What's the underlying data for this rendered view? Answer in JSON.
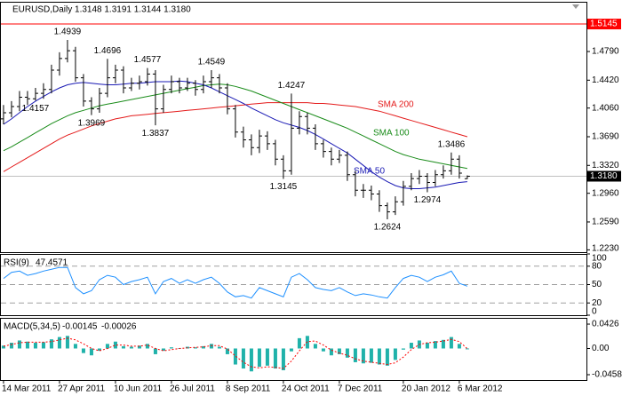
{
  "chart_data": [
    {
      "type": "ohlc",
      "title": "EURUSD,Daily  1.3148 1.3191 1.3144 1.3180",
      "color": "#000000",
      "open": [
        1.392,
        1.4,
        1.408,
        1.42,
        1.418,
        1.425,
        1.43,
        1.455,
        1.47,
        1.48,
        1.445,
        1.415,
        1.405,
        1.425,
        1.445,
        1.455,
        1.432,
        1.438,
        1.44,
        1.45,
        1.405,
        1.43,
        1.44,
        1.432,
        1.438,
        1.43,
        1.44,
        1.445,
        1.432,
        1.405,
        1.375,
        1.365,
        1.355,
        1.37,
        1.36,
        1.34,
        1.325,
        1.38,
        1.395,
        1.38,
        1.36,
        1.35,
        1.34,
        1.345,
        1.32,
        1.3,
        1.3,
        1.295,
        1.28,
        1.272,
        1.285,
        1.305,
        1.315,
        1.318,
        1.31,
        1.32,
        1.325,
        1.34,
        1.3148
      ],
      "high": [
        1.41,
        1.415,
        1.428,
        1.428,
        1.432,
        1.438,
        1.462,
        1.478,
        1.4939,
        1.485,
        1.45,
        1.42,
        1.432,
        1.4696,
        1.462,
        1.46,
        1.445,
        1.448,
        1.4577,
        1.455,
        1.436,
        1.448,
        1.445,
        1.445,
        1.442,
        1.448,
        1.4549,
        1.45,
        1.438,
        1.41,
        1.382,
        1.372,
        1.378,
        1.376,
        1.365,
        1.345,
        1.4247,
        1.402,
        1.4,
        1.385,
        1.365,
        1.355,
        1.352,
        1.35,
        1.325,
        1.308,
        1.306,
        1.3,
        1.284,
        1.292,
        1.312,
        1.322,
        1.326,
        1.322,
        1.326,
        1.332,
        1.3486,
        1.345,
        1.3191
      ],
      "low": [
        1.385,
        1.394,
        1.402,
        1.41,
        1.4157,
        1.418,
        1.425,
        1.448,
        1.465,
        1.44,
        1.408,
        1.3969,
        1.4,
        1.42,
        1.438,
        1.425,
        1.428,
        1.43,
        1.435,
        1.3837,
        1.4,
        1.425,
        1.425,
        1.428,
        1.422,
        1.425,
        1.432,
        1.425,
        1.398,
        1.368,
        1.355,
        1.345,
        1.348,
        1.352,
        1.332,
        1.3145,
        1.32,
        1.372,
        1.372,
        1.352,
        1.342,
        1.332,
        1.335,
        1.312,
        1.292,
        1.29,
        1.287,
        1.272,
        1.2624,
        1.268,
        1.28,
        1.3,
        1.308,
        1.2974,
        1.305,
        1.315,
        1.32,
        1.315,
        1.3144
      ],
      "close": [
        1.4,
        1.408,
        1.42,
        1.418,
        1.425,
        1.43,
        1.455,
        1.47,
        1.48,
        1.445,
        1.415,
        1.405,
        1.425,
        1.445,
        1.455,
        1.432,
        1.438,
        1.44,
        1.45,
        1.405,
        1.43,
        1.44,
        1.432,
        1.438,
        1.43,
        1.44,
        1.445,
        1.432,
        1.405,
        1.375,
        1.365,
        1.355,
        1.37,
        1.36,
        1.34,
        1.325,
        1.38,
        1.395,
        1.38,
        1.36,
        1.35,
        1.34,
        1.345,
        1.32,
        1.3,
        1.3,
        1.295,
        1.28,
        1.272,
        1.285,
        1.305,
        1.315,
        1.318,
        1.31,
        1.32,
        1.325,
        1.34,
        1.322,
        1.318
      ],
      "high_labels": [
        null,
        null,
        null,
        null,
        null,
        null,
        null,
        null,
        "1.4939",
        null,
        null,
        null,
        null,
        "1.4696",
        null,
        null,
        null,
        null,
        "1.4577",
        null,
        null,
        null,
        null,
        null,
        null,
        null,
        "1.4549",
        null,
        null,
        null,
        null,
        null,
        null,
        null,
        null,
        null,
        "1.4247",
        null,
        null,
        null,
        null,
        null,
        null,
        null,
        null,
        null,
        null,
        null,
        null,
        null,
        null,
        null,
        null,
        null,
        null,
        null,
        "1.3486",
        null,
        null
      ],
      "low_labels": [
        null,
        null,
        null,
        null,
        "1.4157",
        null,
        null,
        null,
        null,
        null,
        null,
        "1.3969",
        null,
        null,
        null,
        null,
        null,
        null,
        null,
        "1.3837",
        null,
        null,
        null,
        null,
        null,
        null,
        null,
        null,
        null,
        null,
        null,
        null,
        null,
        null,
        null,
        "1.3145",
        null,
        null,
        null,
        null,
        null,
        null,
        null,
        null,
        null,
        null,
        null,
        null,
        "1.2624",
        null,
        null,
        null,
        null,
        "1.2974",
        null,
        null,
        null,
        null,
        null
      ],
      "series": [
        {
          "name": "SMA 200",
          "color": "#e41a1a",
          "values": [
            1.324,
            1.33,
            1.336,
            1.342,
            1.348,
            1.354,
            1.36,
            1.366,
            1.371,
            1.375,
            1.379,
            1.383,
            1.386,
            1.389,
            1.392,
            1.394,
            1.396,
            1.397,
            1.398,
            1.399,
            1.4,
            1.401,
            1.402,
            1.403,
            1.404,
            1.405,
            1.406,
            1.407,
            1.408,
            1.409,
            1.41,
            1.411,
            1.412,
            1.413,
            1.413,
            1.413,
            1.413,
            1.413,
            1.413,
            1.412,
            1.412,
            1.411,
            1.41,
            1.409,
            1.408,
            1.406,
            1.404,
            1.402,
            1.399,
            1.396,
            1.393,
            1.39,
            1.387,
            1.384,
            1.381,
            1.378,
            1.375,
            1.372,
            1.369
          ]
        },
        {
          "name": "SMA 100",
          "color": "#1a8c1a",
          "values": [
            1.351,
            1.356,
            1.362,
            1.368,
            1.374,
            1.38,
            1.386,
            1.391,
            1.396,
            1.4,
            1.403,
            1.406,
            1.409,
            1.411,
            1.413,
            1.415,
            1.417,
            1.419,
            1.421,
            1.423,
            1.425,
            1.427,
            1.429,
            1.431,
            1.433,
            1.435,
            1.436,
            1.437,
            1.436,
            1.434,
            1.431,
            1.428,
            1.424,
            1.42,
            1.416,
            1.412,
            1.408,
            1.404,
            1.4,
            1.396,
            1.392,
            1.388,
            1.384,
            1.38,
            1.375,
            1.37,
            1.365,
            1.36,
            1.355,
            1.35,
            1.346,
            1.343,
            1.34,
            1.338,
            1.336,
            1.334,
            1.332,
            1.33,
            1.328
          ]
        },
        {
          "name": "SMA 50",
          "color": "#1a1ab4",
          "values": [
            1.385,
            1.392,
            1.4,
            1.408,
            1.415,
            1.421,
            1.427,
            1.432,
            1.436,
            1.438,
            1.439,
            1.438,
            1.437,
            1.436,
            1.436,
            1.437,
            1.438,
            1.438,
            1.439,
            1.44,
            1.44,
            1.44,
            1.441,
            1.44,
            1.438,
            1.436,
            1.432,
            1.427,
            1.422,
            1.417,
            1.412,
            1.406,
            1.401,
            1.396,
            1.391,
            1.387,
            1.384,
            1.381,
            1.377,
            1.372,
            1.366,
            1.36,
            1.354,
            1.348,
            1.34,
            1.332,
            1.324,
            1.317,
            1.311,
            1.306,
            1.303,
            1.302,
            1.302,
            1.303,
            1.304,
            1.306,
            1.308,
            1.31,
            1.311
          ]
        }
      ],
      "alert_line": {
        "value": 1.5145,
        "color": "#ff0000"
      },
      "last_price_label": "1.3180",
      "xlim": [
        -0.44,
        72.9
      ],
      "xticks": [
        {
          "value": 0,
          "label": "14 Mar 2011"
        },
        {
          "value": 7,
          "label": "27 Apr 2011"
        },
        {
          "value": 14,
          "label": "10 Jun 2011"
        },
        {
          "value": 21,
          "label": "26 Jul 2011"
        },
        {
          "value": 28,
          "label": "8 Sep 2011"
        },
        {
          "value": 35,
          "label": "24 Oct 2011"
        },
        {
          "value": 42,
          "label": "7 Dec 2011"
        },
        {
          "value": 50,
          "label": "20 Jan 2012"
        },
        {
          "value": 57,
          "label": "6 Mar 2012"
        }
      ],
      "ylim": [
        1.22,
        1.5432
      ],
      "yticks": [
        {
          "value": 1.479,
          "label": "1.4790"
        },
        {
          "value": 1.442,
          "label": "1.4420"
        },
        {
          "value": 1.406,
          "label": "1.4060"
        },
        {
          "value": 1.369,
          "label": "1.3690"
        },
        {
          "value": 1.332,
          "label": "1.3320"
        },
        {
          "value": 1.296,
          "label": "1.2960"
        },
        {
          "value": 1.259,
          "label": "1.2590"
        },
        {
          "value": 1.223,
          "label": "1.2230"
        }
      ]
    },
    {
      "type": "line",
      "title": "RSI(9)",
      "color": "#1e90ff",
      "values": [
        60,
        70,
        72,
        65,
        68,
        72,
        75,
        78,
        78,
        45,
        35,
        40,
        58,
        65,
        62,
        50,
        55,
        58,
        62,
        35,
        55,
        60,
        52,
        58,
        52,
        58,
        62,
        52,
        38,
        30,
        32,
        28,
        45,
        40,
        35,
        30,
        62,
        68,
        58,
        45,
        42,
        40,
        45,
        38,
        32,
        35,
        33,
        30,
        28,
        45,
        60,
        65,
        62,
        55,
        62,
        66,
        72,
        52,
        47.4571
      ],
      "levels": [
        80,
        50,
        20
      ],
      "ylim": [
        0,
        100
      ],
      "yticks": [
        100,
        80,
        50,
        20,
        0
      ]
    },
    {
      "type": "macd",
      "title": "MACD(5,34,5)",
      "histogram": {
        "color": "#20b2aa",
        "values": [
          0.005,
          0.01,
          0.014,
          0.012,
          0.01,
          0.011,
          0.016,
          0.02,
          0.022,
          0.008,
          -0.008,
          -0.012,
          -0.004,
          0.008,
          0.012,
          0.004,
          0.003,
          0.005,
          0.008,
          -0.01,
          -0.004,
          0.002,
          0,
          0.003,
          0.002,
          0.004,
          0.008,
          0.003,
          -0.01,
          -0.028,
          -0.035,
          -0.04,
          -0.032,
          -0.03,
          -0.035,
          -0.038,
          -0.005,
          0.018,
          0.022,
          0.008,
          -0.005,
          -0.012,
          -0.01,
          -0.016,
          -0.024,
          -0.026,
          -0.025,
          -0.028,
          -0.03,
          -0.02,
          -0.002,
          0.01,
          0.014,
          0.01,
          0.013,
          0.015,
          0.02,
          0.008,
          -0.00145
        ]
      },
      "signal": {
        "color": "#ff0000",
        "values": [
          0.004,
          0.007,
          0.01,
          0.011,
          0.011,
          0.011,
          0.012,
          0.015,
          0.018,
          0.015,
          0.008,
          0,
          -0.004,
          0,
          0.006,
          0.006,
          0.004,
          0.004,
          0.006,
          0,
          -0.004,
          -0.002,
          0,
          0.001,
          0.002,
          0.003,
          0.005,
          0.005,
          -0.001,
          -0.013,
          -0.024,
          -0.032,
          -0.034,
          -0.032,
          -0.033,
          -0.035,
          -0.022,
          -0.004,
          0.012,
          0.013,
          0.006,
          -0.003,
          -0.008,
          -0.012,
          -0.018,
          -0.022,
          -0.024,
          -0.026,
          -0.028,
          -0.025,
          -0.015,
          -0.002,
          0.007,
          0.01,
          0.011,
          0.013,
          0.016,
          0.012,
          -0.00026
        ]
      },
      "ylim": [
        -0.0551,
        0.0535
      ],
      "yticks": [
        0.0426,
        {
          "value": 0,
          "label": "0.00"
        },
        -0.0458
      ]
    }
  ]
}
